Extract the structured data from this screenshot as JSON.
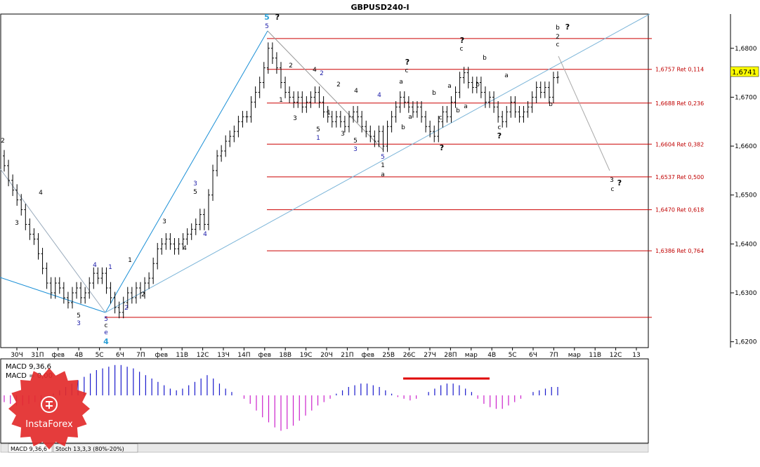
{
  "header": {
    "title": "GBPUSD240-I"
  },
  "price_tag": {
    "value": "1,6741",
    "color": "#ffff00"
  },
  "macd_panel": {
    "line1": "MACD 9,36,6",
    "line2": "MACD = 0,00"
  },
  "indicator_tabs": [
    {
      "label": "MACD 9,36,6"
    },
    {
      "label": "Stoch 13,3,3 (80%-20%)"
    }
  ],
  "logo": {
    "text": "InstaForex",
    "color": "#e32b2b"
  },
  "colors": {
    "fib": "#cc0000",
    "trend": "#1a8fd6",
    "bull": "#1a1acc",
    "bear": "#cc22cc",
    "axis": "#000000"
  },
  "chart_data": {
    "type": "candlestick",
    "title": "GBPUSD240-I",
    "y_range": [
      1.6188,
      1.687
    ],
    "y_ticks": [
      "1,6800",
      "1,6700",
      "1,6600",
      "1,6500",
      "1,6400",
      "1,6300",
      "1,6200"
    ],
    "y_tick_values": [
      1.68,
      1.67,
      1.66,
      1.65,
      1.64,
      1.63,
      1.62
    ],
    "x_ticks": [
      "30Ч",
      "31П",
      "фев",
      "4В",
      "5С",
      "6Ч",
      "7П",
      "фев",
      "11В",
      "12С",
      "13Ч",
      "14П",
      "фев",
      "18В",
      "19С",
      "20Ч",
      "21П",
      "фев",
      "25В",
      "26С",
      "27Ч",
      "28П",
      "мар",
      "4В",
      "5С",
      "6Ч",
      "7П",
      "мар",
      "11В",
      "12С",
      "13"
    ],
    "fib_levels": [
      {
        "price": 1.682,
        "label": ""
      },
      {
        "price": 1.6757,
        "label": "1,6757 Ret 0,114"
      },
      {
        "price": 1.6688,
        "label": "1,6688 Ret 0,236"
      },
      {
        "price": 1.6604,
        "label": "1,6604 Ret 0,382"
      },
      {
        "price": 1.6537,
        "label": "1,6537 Ret 0,500"
      },
      {
        "price": 1.647,
        "label": "1,6470 Ret 0,618"
      },
      {
        "price": 1.6386,
        "label": "1,6386 Ret 0,764"
      },
      {
        "price": 1.625,
        "label": ""
      }
    ],
    "closes": [
      1.656,
      1.653,
      1.651,
      1.649,
      1.647,
      1.644,
      1.642,
      1.641,
      1.638,
      1.635,
      1.632,
      1.63,
      1.632,
      1.631,
      1.629,
      1.628,
      1.63,
      1.631,
      1.629,
      1.63,
      1.632,
      1.634,
      1.633,
      1.634,
      1.631,
      1.629,
      1.627,
      1.626,
      1.628,
      1.63,
      1.629,
      1.631,
      1.63,
      1.632,
      1.633,
      1.636,
      1.639,
      1.64,
      1.641,
      1.64,
      1.639,
      1.64,
      1.641,
      1.642,
      1.643,
      1.644,
      1.646,
      1.644,
      1.65,
      1.655,
      1.658,
      1.659,
      1.661,
      1.662,
      1.663,
      1.665,
      1.666,
      1.666,
      1.669,
      1.671,
      1.673,
      1.676,
      1.68,
      1.678,
      1.676,
      1.673,
      1.671,
      1.67,
      1.669,
      1.67,
      1.668,
      1.669,
      1.67,
      1.671,
      1.669,
      1.667,
      1.666,
      1.665,
      1.666,
      1.665,
      1.664,
      1.666,
      1.667,
      1.666,
      1.664,
      1.663,
      1.662,
      1.661,
      1.663,
      1.66,
      1.664,
      1.666,
      1.668,
      1.67,
      1.669,
      1.668,
      1.667,
      1.668,
      1.666,
      1.664,
      1.663,
      1.662,
      1.665,
      1.667,
      1.666,
      1.669,
      1.671,
      1.674,
      1.675,
      1.673,
      1.672,
      1.673,
      1.671,
      1.669,
      1.67,
      1.668,
      1.666,
      1.665,
      1.667,
      1.669,
      1.667,
      1.666,
      1.667,
      1.668,
      1.67,
      1.672,
      1.671,
      1.672,
      1.67,
      1.674,
      1.6741
    ],
    "macd": [
      -0.4,
      -0.5,
      -0.6,
      -0.6,
      -0.5,
      -0.4,
      -0.3,
      -0.2,
      0.1,
      0.3,
      0.5,
      0.7,
      0.9,
      1.1,
      1.3,
      1.5,
      1.6,
      1.7,
      1.8,
      1.8,
      1.7,
      1.6,
      1.4,
      1.2,
      1.0,
      0.8,
      0.6,
      0.4,
      0.3,
      0.4,
      0.6,
      0.8,
      1.0,
      1.2,
      1.0,
      0.7,
      0.4,
      0.2,
      0.0,
      -0.2,
      -0.5,
      -0.9,
      -1.3,
      -1.6,
      -1.9,
      -2.1,
      -2.0,
      -1.8,
      -1.5,
      -1.2,
      -0.9,
      -0.6,
      -0.4,
      -0.2,
      0.1,
      0.3,
      0.5,
      0.6,
      0.7,
      0.7,
      0.6,
      0.5,
      0.3,
      0.1,
      -0.1,
      -0.2,
      -0.3,
      -0.2,
      0.0,
      0.2,
      0.4,
      0.6,
      0.7,
      0.7,
      0.6,
      0.4,
      0.2,
      -0.2,
      -0.5,
      -0.7,
      -0.8,
      -0.8,
      -0.6,
      -0.4,
      -0.2,
      0.0,
      0.2,
      0.3,
      0.4,
      0.5,
      0.5
    ]
  }
}
